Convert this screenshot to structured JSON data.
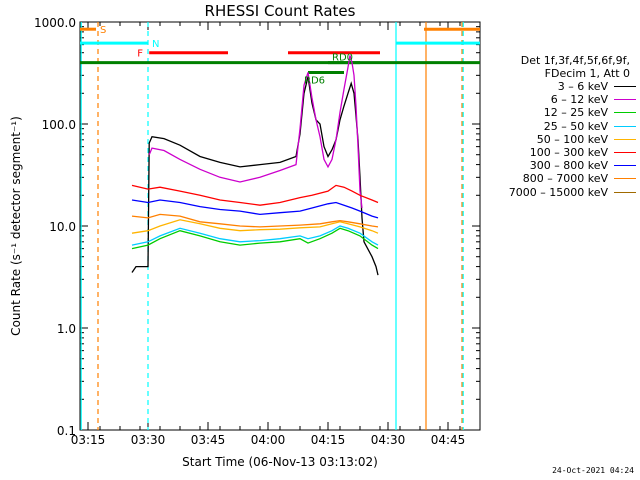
{
  "chart_data": {
    "type": "line",
    "title": "RHESSI Count Rates",
    "xlabel": "Start Time (06-Nov-13 03:13:02)",
    "ylabel": "Count Rate (s⁻¹ detector segment⁻¹)",
    "x_range_minutes": [
      0,
      100
    ],
    "ylim": [
      0.1,
      1000
    ],
    "yscale": "log",
    "x_tick_labels": [
      "03:15",
      "03:30",
      "03:45",
      "04:00",
      "04:15",
      "04:30",
      "04:45"
    ],
    "x_tick_minutes": [
      2,
      17,
      32,
      47,
      62,
      77,
      92
    ],
    "y_tick_labels": [
      "0.1",
      "1.0",
      "10.0",
      "100.0",
      "1000.0"
    ],
    "y_tick_values": [
      0.1,
      1,
      10,
      100,
      1000
    ],
    "legend_header": [
      "Det 1f,3f,4f,5f,6f,9f,",
      "FDecim 1, Att 0"
    ],
    "series": [
      {
        "name": "3 – 6 keV",
        "color": "#000000",
        "points": [
          [
            13,
            3.5
          ],
          [
            14,
            4
          ],
          [
            16,
            4
          ],
          [
            17,
            4
          ],
          [
            17.3,
            65
          ],
          [
            18,
            75
          ],
          [
            21,
            72
          ],
          [
            25,
            62
          ],
          [
            30,
            48
          ],
          [
            35,
            42
          ],
          [
            40,
            38
          ],
          [
            45,
            40
          ],
          [
            50,
            42
          ],
          [
            54,
            48
          ],
          [
            55,
            80
          ],
          [
            56,
            200
          ],
          [
            57,
            290
          ],
          [
            58,
            160
          ],
          [
            59,
            110
          ],
          [
            60,
            100
          ],
          [
            61,
            60
          ],
          [
            62,
            48
          ],
          [
            63,
            56
          ],
          [
            64,
            70
          ],
          [
            65,
            110
          ],
          [
            66,
            150
          ],
          [
            67,
            200
          ],
          [
            67.8,
            250
          ],
          [
            68.5,
            200
          ],
          [
            69,
            120
          ],
          [
            69.5,
            70
          ],
          [
            70,
            30
          ],
          [
            70.5,
            12
          ],
          [
            71,
            7
          ],
          [
            73,
            5
          ],
          [
            74,
            4
          ],
          [
            74.5,
            3.3
          ]
        ]
      },
      {
        "name": "6 – 12 keV",
        "color": "#cc00cc",
        "points": [
          [
            17.3,
            50
          ],
          [
            18,
            58
          ],
          [
            21,
            55
          ],
          [
            25,
            45
          ],
          [
            30,
            36
          ],
          [
            35,
            30
          ],
          [
            40,
            27
          ],
          [
            45,
            30
          ],
          [
            50,
            35
          ],
          [
            54,
            40
          ],
          [
            55,
            90
          ],
          [
            56,
            240
          ],
          [
            57,
            320
          ],
          [
            58,
            180
          ],
          [
            59,
            110
          ],
          [
            60,
            75
          ],
          [
            61,
            45
          ],
          [
            62,
            38
          ],
          [
            63,
            45
          ],
          [
            64,
            70
          ],
          [
            65,
            130
          ],
          [
            66,
            220
          ],
          [
            67,
            360
          ],
          [
            67.5,
            470
          ],
          [
            68,
            400
          ],
          [
            68.5,
            300
          ],
          [
            69,
            150
          ],
          [
            69.5,
            60
          ],
          [
            70,
            22
          ],
          [
            70.5,
            15
          ]
        ]
      },
      {
        "name": "12 – 25 keV",
        "color": "#00cc00",
        "points": [
          [
            13,
            6
          ],
          [
            17,
            6.5
          ],
          [
            20,
            7.5
          ],
          [
            25,
            9
          ],
          [
            30,
            8
          ],
          [
            35,
            7
          ],
          [
            40,
            6.5
          ],
          [
            45,
            6.8
          ],
          [
            50,
            7
          ],
          [
            55,
            7.5
          ],
          [
            57,
            6.8
          ],
          [
            60,
            7.5
          ],
          [
            63,
            8.5
          ],
          [
            65,
            9.5
          ],
          [
            67,
            9
          ],
          [
            70,
            8
          ],
          [
            73,
            6.5
          ],
          [
            74.5,
            6
          ]
        ]
      },
      {
        "name": "25 – 50 keV",
        "color": "#00ccff",
        "points": [
          [
            13,
            6.5
          ],
          [
            17,
            7
          ],
          [
            20,
            8
          ],
          [
            25,
            9.5
          ],
          [
            30,
            8.5
          ],
          [
            35,
            7.5
          ],
          [
            40,
            7
          ],
          [
            45,
            7.2
          ],
          [
            50,
            7.5
          ],
          [
            55,
            8
          ],
          [
            57,
            7.5
          ],
          [
            60,
            8
          ],
          [
            63,
            9
          ],
          [
            65,
            10
          ],
          [
            67,
            9.5
          ],
          [
            70,
            8.5
          ],
          [
            73,
            7
          ],
          [
            74.5,
            6.5
          ]
        ]
      },
      {
        "name": "50 – 100 keV",
        "color": "#ffb400",
        "points": [
          [
            13,
            8.5
          ],
          [
            17,
            9
          ],
          [
            20,
            10
          ],
          [
            25,
            11.5
          ],
          [
            30,
            10.5
          ],
          [
            35,
            9.5
          ],
          [
            40,
            9
          ],
          [
            45,
            9.2
          ],
          [
            50,
            9.3
          ],
          [
            55,
            9.6
          ],
          [
            60,
            9.8
          ],
          [
            63,
            10.5
          ],
          [
            65,
            11
          ],
          [
            67,
            10.5
          ],
          [
            70,
            9.8
          ],
          [
            73,
            9
          ],
          [
            74.5,
            8.5
          ]
        ]
      },
      {
        "name": "100 – 300 keV",
        "color": "#ff0000",
        "points": [
          [
            13,
            25
          ],
          [
            17,
            23
          ],
          [
            20,
            24
          ],
          [
            25,
            22
          ],
          [
            30,
            20
          ],
          [
            35,
            18
          ],
          [
            40,
            17
          ],
          [
            45,
            16
          ],
          [
            50,
            17
          ],
          [
            55,
            19
          ],
          [
            58,
            20
          ],
          [
            62,
            22
          ],
          [
            64,
            25
          ],
          [
            66,
            24
          ],
          [
            68,
            22
          ],
          [
            70,
            20
          ],
          [
            73,
            18
          ],
          [
            74.5,
            17
          ]
        ]
      },
      {
        "name": "300 – 800 keV",
        "color": "#0000ff",
        "points": [
          [
            13,
            18
          ],
          [
            17,
            17
          ],
          [
            20,
            18
          ],
          [
            25,
            17
          ],
          [
            30,
            15.5
          ],
          [
            35,
            14.5
          ],
          [
            40,
            14
          ],
          [
            45,
            13
          ],
          [
            50,
            13.5
          ],
          [
            55,
            14
          ],
          [
            58,
            15
          ],
          [
            62,
            16.5
          ],
          [
            64,
            17
          ],
          [
            66,
            16
          ],
          [
            68,
            15
          ],
          [
            70,
            14
          ],
          [
            73,
            12.5
          ],
          [
            74.5,
            12
          ]
        ]
      },
      {
        "name": "800 – 7000 keV",
        "color": "#ff8000",
        "points": [
          [
            13,
            12.5
          ],
          [
            17,
            12
          ],
          [
            20,
            13
          ],
          [
            25,
            12.5
          ],
          [
            30,
            11
          ],
          [
            35,
            10.5
          ],
          [
            40,
            10
          ],
          [
            45,
            9.8
          ],
          [
            50,
            10
          ],
          [
            55,
            10.2
          ],
          [
            60,
            10.5
          ],
          [
            63,
            11
          ],
          [
            65,
            11.3
          ],
          [
            67,
            11
          ],
          [
            70,
            10.5
          ],
          [
            73,
            10
          ],
          [
            74.5,
            9.8
          ]
        ]
      },
      {
        "name": "7000 – 15000 keV",
        "color": "#a06a00",
        "points": []
      }
    ],
    "bars": [
      {
        "label": "S",
        "color": "#ff8000",
        "x": [
          0,
          4
        ],
        "y": 850
      },
      {
        "label": "N",
        "color": "#00ffff",
        "x": [
          0,
          17
        ],
        "y": 620
      },
      {
        "label": "F",
        "color": "#ff0000",
        "x": [
          17.3,
          37
        ],
        "y": 500
      },
      {
        "label": "",
        "color": "#ff0000",
        "x": [
          52,
          75
        ],
        "y": 500
      },
      {
        "label": "RD0",
        "color": "#008000",
        "x": [
          62,
          70
        ],
        "y": 400
      },
      {
        "label": "RD6",
        "color": "#008000",
        "x": [
          57,
          66
        ],
        "y": 320
      },
      {
        "label": "",
        "color": "#008000",
        "x": [
          0,
          100
        ],
        "y": 400
      },
      {
        "label": "",
        "color": "#ff8000",
        "x": [
          86,
          100
        ],
        "y": 850
      },
      {
        "label": "",
        "color": "#00ffff",
        "x": [
          79,
          100
        ],
        "y": 620
      }
    ],
    "vlines": [
      {
        "x": 4.5,
        "color": "#ff8000",
        "dash": true
      },
      {
        "x": 17,
        "color": "#00ffff",
        "dash": true
      },
      {
        "x": 95.5,
        "color": "#ff8000",
        "dash": true
      },
      {
        "x": 95.8,
        "color": "#00ffff",
        "dash": true
      },
      {
        "x": 79,
        "color": "#00ffff",
        "dash": false
      },
      {
        "x": 86.5,
        "color": "#ff8000",
        "dash": false
      },
      {
        "x": 0.3,
        "color": "#00ffff",
        "dash": false
      }
    ]
  },
  "footer": {
    "timestamp": "24-Oct-2021 04:24"
  }
}
